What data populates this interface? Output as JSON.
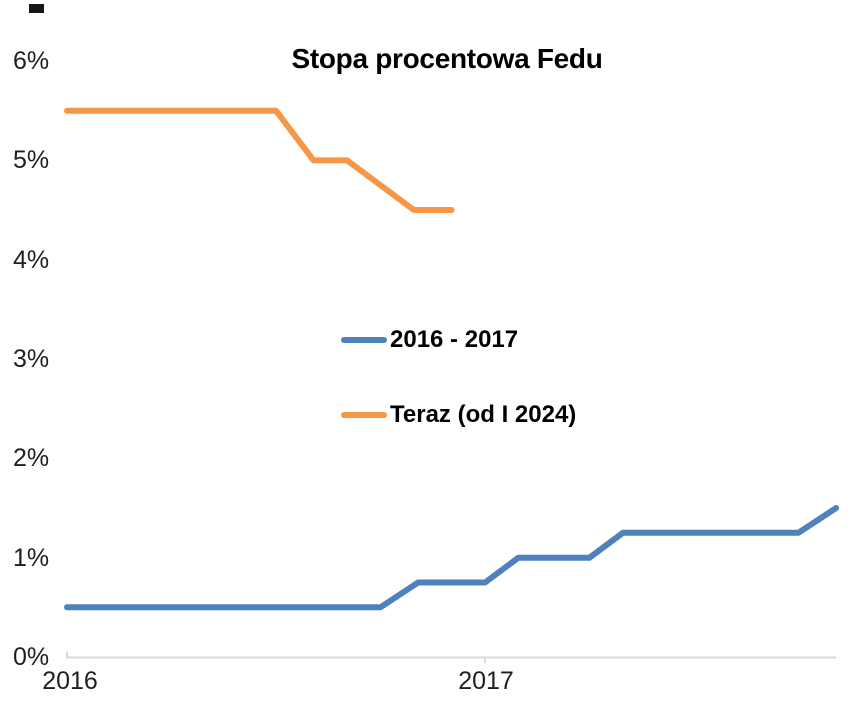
{
  "chart_data": {
    "type": "line",
    "title": "Stopa procentowa Fedu",
    "x_axis": {
      "ticks": [
        2016,
        2017
      ],
      "tick_labels": [
        "2016",
        "2017"
      ],
      "range": [
        2016.0,
        2017.84
      ],
      "gridlines": false
    },
    "y_axis": {
      "ticks": [
        0,
        1,
        2,
        3,
        4,
        5,
        6
      ],
      "tick_labels": [
        "0%",
        "1%",
        "2%",
        "3%",
        "4%",
        "5%",
        "6%"
      ],
      "range": [
        0,
        6
      ],
      "unit": "%",
      "gridlines": false
    },
    "legend": {
      "position": "center-left-inside-plot",
      "entries": [
        "2016 - 2017",
        "Teraz (od I 2024)"
      ]
    },
    "series": [
      {
        "name": "2016 - 2017",
        "color": "#4F81BD",
        "points": [
          [
            2016.0,
            0.5
          ],
          [
            2016.75,
            0.5
          ],
          [
            2016.84,
            0.75
          ],
          [
            2017.0,
            0.75
          ],
          [
            2017.08,
            1.0
          ],
          [
            2017.25,
            1.0
          ],
          [
            2017.33,
            1.25
          ],
          [
            2017.75,
            1.25
          ],
          [
            2017.84,
            1.5
          ]
        ]
      },
      {
        "name": "Teraz (od I 2024)",
        "color": "#F79646",
        "points": [
          [
            2016.0,
            5.5
          ],
          [
            2016.5,
            5.5
          ],
          [
            2016.59,
            5.0
          ],
          [
            2016.67,
            5.0
          ],
          [
            2016.83,
            4.5
          ],
          [
            2016.92,
            4.5
          ]
        ]
      }
    ],
    "axis_color": "#D9D9D9"
  }
}
